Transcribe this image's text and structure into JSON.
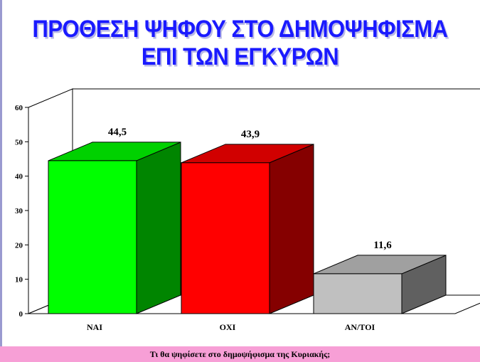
{
  "title": {
    "line1": "ΠΡΟΘΕΣΗ ΨΗΦΟΥ ΣΤΟ ΔΗΜΟΨΗΦΙΣΜΑ",
    "line2": "ΕΠΙ ΤΩΝ ΕΓΚΥΡΩΝ"
  },
  "footer": {
    "text": "Τι θα ψηφίσετε στο δημοψήφισμα της Κυριακής;"
  },
  "colors": {
    "title": "#1a1aff",
    "footer_bg": "#f79fd6",
    "bar_nai": "#00ff00",
    "bar_oxi": "#ff0000",
    "bar_antoi": "#c0c0c0"
  },
  "chart_data": {
    "type": "bar",
    "style": "3d",
    "categories": [
      "ΝΑΙ",
      "ΟΧΙ",
      "ΑΝ/ΤΟΙ"
    ],
    "values": [
      44.5,
      43.9,
      11.6
    ],
    "value_labels": [
      "44,5",
      "43,9",
      "11,6"
    ],
    "yticks": [
      "0",
      "10",
      "20",
      "30",
      "40",
      "50",
      "60"
    ],
    "ylim": [
      0,
      60
    ],
    "grid": false,
    "legend": "none"
  }
}
